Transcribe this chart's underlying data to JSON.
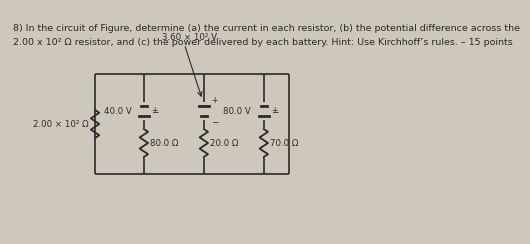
{
  "bg_color": "#cec8bc",
  "text_color": "#2a2a2a",
  "title_line1": "8) In the circuit of Figure, determine (a) the current in each resistor, (b) the potential difference across the",
  "title_line2": "2.00 x 10² Ω resistor, and (c) the power delivered by each battery. Hint: Use Kirchhoff’s rules. – 15 points",
  "battery_label_top": "3.60 × 10² V",
  "bat1_label": "40.0 V",
  "bat2_label": "80.0 V",
  "res_left_label": "2.00 × 10² Ω",
  "res1_label": "80.0 Ω",
  "res2_label": "20.0 Ω",
  "res3_label": "70.0 Ω",
  "font_size_title": 6.8,
  "font_size_circuit": 6.2
}
